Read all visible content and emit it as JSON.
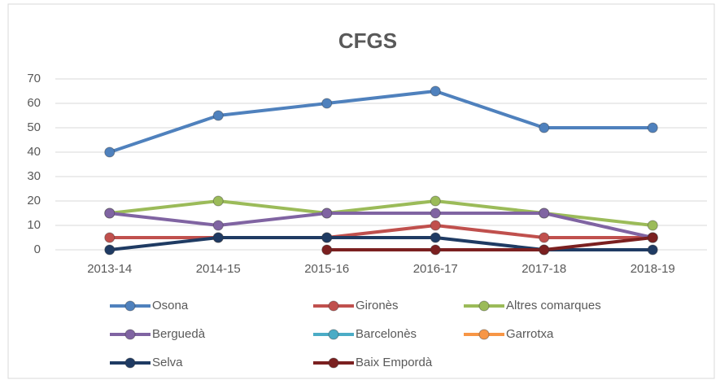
{
  "chart_data": {
    "type": "line",
    "title": "CFGS",
    "categories": [
      "2013-14",
      "2014-15",
      "2015-16",
      "2016-17",
      "2017-18",
      "2018-19"
    ],
    "ylim": [
      0,
      70
    ],
    "yticks": [
      0,
      10,
      20,
      30,
      40,
      50,
      60,
      70
    ],
    "grid": true,
    "series": [
      {
        "name": "Osona",
        "color": "#4f81bd",
        "values": [
          40,
          55,
          60,
          65,
          50,
          50
        ]
      },
      {
        "name": "Gironès",
        "color": "#c0504d",
        "values": [
          5,
          5,
          5,
          10,
          5,
          5
        ]
      },
      {
        "name": "Altres comarques",
        "color": "#9bbb59",
        "values": [
          15,
          20,
          15,
          20,
          15,
          10
        ]
      },
      {
        "name": "Berguedà",
        "color": "#8064a2",
        "values": [
          15,
          10,
          15,
          15,
          15,
          5
        ]
      },
      {
        "name": "Barcelonès",
        "color": "#4bacc6",
        "values": [
          null,
          null,
          null,
          null,
          null,
          null
        ]
      },
      {
        "name": "Garrotxa",
        "color": "#f79646",
        "values": [
          null,
          null,
          null,
          null,
          null,
          null
        ]
      },
      {
        "name": "Selva",
        "color": "#1f3b63",
        "values": [
          0,
          5,
          5,
          5,
          0,
          0
        ]
      },
      {
        "name": "Baix Empordà",
        "color": "#7b2020",
        "values": [
          null,
          null,
          0,
          0,
          0,
          5
        ]
      }
    ]
  }
}
